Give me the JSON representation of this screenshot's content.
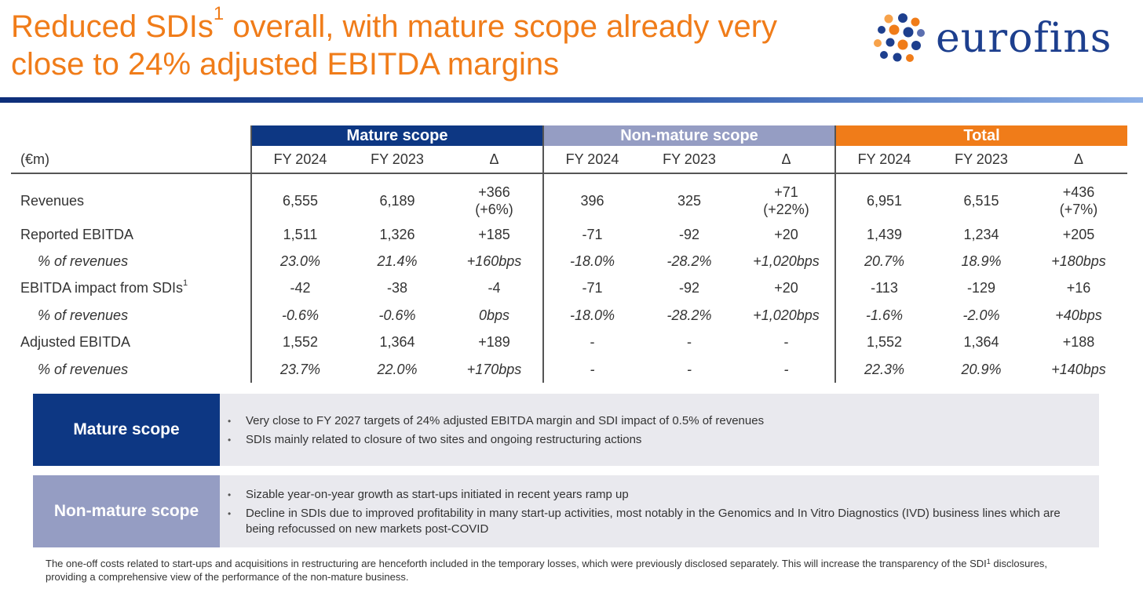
{
  "title": {
    "text": "Reduced SDIs",
    "sup": "1",
    "rest": " overall, with mature scope already very close to 24% adjusted EBITDA margins"
  },
  "logo": {
    "text": "eurofins"
  },
  "colors": {
    "title_orange": "#f07c19",
    "mature_blue": "#0d3783",
    "nonmature_lilac": "#959dc3",
    "total_orange": "#f07c19",
    "logo_blue": "#1d3f8e"
  },
  "table": {
    "groups": [
      "Mature scope",
      "Non-mature scope",
      "Total"
    ],
    "unit_label": "(€m)",
    "sub_headers": [
      "FY 2024",
      "FY 2023",
      "Δ",
      "FY 2024",
      "FY 2023",
      "Δ",
      "FY 2024",
      "FY 2023",
      "Δ"
    ],
    "revenues": {
      "label": "Revenues",
      "cells": [
        {
          "top": "6,555"
        },
        {
          "top": "6,189"
        },
        {
          "top": "+366",
          "bottom": "(+6%)"
        },
        {
          "top": "396"
        },
        {
          "top": "325"
        },
        {
          "top": "+71",
          "bottom": "(+22%)"
        },
        {
          "top": "6,951"
        },
        {
          "top": "6,515"
        },
        {
          "top": "+436",
          "bottom": "(+7%)"
        }
      ]
    },
    "rows": [
      {
        "label": "Reported EBITDA",
        "cells": [
          "1,511",
          "1,326",
          "+185",
          "-71",
          "-92",
          "+20",
          "1,439",
          "1,234",
          "+205"
        ]
      },
      {
        "label": "% of revenues",
        "cells": [
          "23.0%",
          "21.4%",
          "+160bps",
          "-18.0%",
          "-28.2%",
          "+1,020bps",
          "20.7%",
          "18.9%",
          "+180bps"
        ]
      },
      {
        "label": "EBITDA impact from SDIs",
        "label_sup": "1",
        "cells": [
          "-42",
          "-38",
          "-4",
          "-71",
          "-92",
          "+20",
          "-113",
          "-129",
          "+16"
        ]
      },
      {
        "label": "% of revenues",
        "cells": [
          "-0.6%",
          "-0.6%",
          "0bps",
          "-18.0%",
          "-28.2%",
          "+1,020bps",
          "-1.6%",
          "-2.0%",
          "+40bps"
        ]
      },
      {
        "label": "Adjusted EBITDA",
        "cells": [
          "1,552",
          "1,364",
          "+189",
          "-",
          "-",
          "-",
          "1,552",
          "1,364",
          "+188"
        ]
      },
      {
        "label": "% of revenues",
        "cells": [
          "23.7%",
          "22.0%",
          "+170bps",
          "-",
          "-",
          "-",
          "22.3%",
          "20.9%",
          "+140bps"
        ]
      }
    ]
  },
  "mature_box": {
    "label": "Mature scope",
    "bullets": [
      "Very close to FY 2027 targets of 24% adjusted EBITDA margin and SDI impact of 0.5% of revenues",
      "SDIs mainly related to closure of two sites and ongoing restructuring actions"
    ]
  },
  "nonmature_box": {
    "label": "Non-mature scope",
    "bullets": [
      "Sizable year-on-year growth as start-ups initiated in recent years ramp up",
      "Decline in SDIs due to improved profitability in many start-up activities, most notably in the Genomics and In Vitro Diagnostics (IVD) business lines which are being refocussed on new markets post-COVID"
    ]
  },
  "footnote": {
    "text": "The one-off costs related to start-ups and acquisitions in restructuring are henceforth included in the temporary losses, which were previously disclosed separately. This will increase the transparency of the SDI",
    "sup": "1",
    "rest": " disclosures, providing a comprehensive view of the performance of the non-mature business."
  }
}
